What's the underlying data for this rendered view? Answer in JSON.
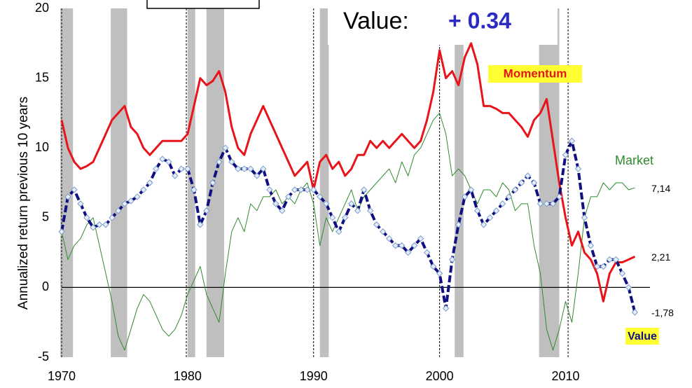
{
  "chart_data": {
    "type": "line",
    "y_label": "Annualized return previous 10 years",
    "xlim": [
      1970,
      2016.7
    ],
    "ylim": [
      -5,
      20
    ],
    "xticks": [
      1970,
      1980,
      1990,
      2000,
      2010
    ],
    "yticks": [
      -5,
      0,
      5,
      10,
      15,
      20
    ],
    "recessions": [
      [
        1969.9,
        1970.9
      ],
      [
        1973.9,
        1975.2
      ],
      [
        1980,
        1980.6
      ],
      [
        1981.5,
        1982.9
      ],
      [
        1990.5,
        1991.2
      ],
      [
        2001.2,
        2001.9
      ],
      [
        2007.9,
        2009.5
      ]
    ],
    "vlines": [
      1970,
      1979.9,
      1990,
      2000,
      2010.2
    ],
    "annotations": [
      {
        "text": "Value:"
      },
      {
        "text": "+ 0.34"
      }
    ],
    "x": [
      1970,
      1970.5,
      1971,
      1971.5,
      1972,
      1972.5,
      1973,
      1973.5,
      1974,
      1974.5,
      1975,
      1975.5,
      1976,
      1976.5,
      1977,
      1977.5,
      1978,
      1978.5,
      1979,
      1979.5,
      1980,
      1980.5,
      1981,
      1981.5,
      1982,
      1982.5,
      1983,
      1983.5,
      1984,
      1984.5,
      1985,
      1985.5,
      1986,
      1986.5,
      1987,
      1987.5,
      1988,
      1988.5,
      1989,
      1989.5,
      1990,
      1990.5,
      1991,
      1991.5,
      1992,
      1992.5,
      1993,
      1993.5,
      1994,
      1994.5,
      1995,
      1995.5,
      1996,
      1996.5,
      1997,
      1997.5,
      1998,
      1998.5,
      1999,
      1999.5,
      2000,
      2000.5,
      2001,
      2001.5,
      2002,
      2002.5,
      2003,
      2003.5,
      2004,
      2004.5,
      2005,
      2005.5,
      2006,
      2006.5,
      2007,
      2007.5,
      2008,
      2008.5,
      2009,
      2009.5,
      2010,
      2010.5,
      2011,
      2011.5,
      2012,
      2012.5,
      2013,
      2013.5,
      2014,
      2014.5,
      2015,
      2015.5
    ],
    "series": [
      {
        "name": "Market",
        "color": "#2e8b2e",
        "width": 1,
        "end_label": "7,14",
        "values": [
          4,
          2,
          3,
          3.5,
          4.5,
          5,
          3,
          1,
          -1,
          -3.5,
          -4.5,
          -3,
          -1.5,
          -0.5,
          -1,
          -2,
          -3,
          -3.5,
          -3,
          -2,
          -0.5,
          0.5,
          1.5,
          -0.5,
          -1.5,
          -2.5,
          1,
          4,
          5,
          4,
          6,
          5.5,
          6.5,
          6.5,
          7,
          6,
          6.5,
          6,
          7,
          7.5,
          6,
          3,
          5,
          4,
          5,
          6,
          7,
          5.5,
          6.5,
          7,
          7.5,
          8,
          8.5,
          7.5,
          9,
          8,
          9.5,
          10,
          11,
          12,
          12.5,
          11,
          8,
          8.5,
          8,
          7,
          6,
          7,
          7,
          6.5,
          7.5,
          7,
          5.5,
          6,
          6,
          3,
          1,
          -3,
          -4.5,
          -3,
          -1,
          -2.5,
          1,
          5,
          6.5,
          6.5,
          7.5,
          7,
          7.5,
          7.5,
          7,
          7.14
        ]
      },
      {
        "name": "Momentum",
        "color": "#e8141a",
        "width": 3,
        "end_label": "2,21",
        "values": [
          12,
          10,
          9,
          8.5,
          8.7,
          9,
          10,
          11,
          12,
          12.5,
          13,
          11.5,
          11,
          10,
          9.5,
          10,
          10.5,
          10.5,
          10.5,
          10.5,
          11,
          13,
          15,
          14.5,
          14.8,
          15.5,
          14,
          11.5,
          10,
          9.5,
          11,
          12,
          13,
          12,
          11,
          10,
          9,
          8,
          8.5,
          9,
          7,
          9,
          9.5,
          8.5,
          9,
          8,
          8.5,
          9.5,
          9.5,
          10.5,
          10,
          10.5,
          10,
          10.5,
          11,
          10.5,
          10,
          10.5,
          12,
          14,
          17,
          15,
          15.5,
          14.5,
          16.5,
          17.5,
          16,
          13,
          13,
          12.8,
          12.5,
          12.5,
          12,
          11.5,
          10.8,
          12,
          12.5,
          13.5,
          10.5,
          7.5,
          5,
          3,
          4,
          2.5,
          2,
          1,
          -1,
          1,
          1.8,
          1.8,
          2,
          2.21
        ]
      },
      {
        "name": "Value",
        "color": "#101080",
        "width": 4,
        "end_label": "-1,78",
        "values": [
          4,
          6.5,
          7,
          6,
          5,
          4.3,
          4.5,
          4.5,
          5,
          5.5,
          6,
          6.2,
          6.5,
          7,
          7.5,
          8.5,
          9.2,
          9,
          8,
          8.5,
          8.5,
          7,
          4.5,
          5.5,
          7.5,
          9,
          10,
          9,
          8.5,
          8.5,
          8.5,
          8,
          8.5,
          7,
          6,
          5.5,
          6.5,
          7,
          7,
          7,
          7,
          6.5,
          6,
          5,
          4,
          5,
          6,
          5.5,
          7,
          5.5,
          4.5,
          4,
          3.5,
          3,
          3,
          2.5,
          3,
          3.5,
          2.5,
          1.5,
          1,
          -1.5,
          2,
          4.5,
          6.5,
          7,
          5.5,
          4.5,
          5,
          5.5,
          6,
          6.5,
          7,
          7.5,
          8,
          7.5,
          6,
          6,
          6,
          6.5,
          9.5,
          10.5,
          8.5,
          5,
          3,
          1.5,
          1.5,
          2,
          2,
          1,
          0,
          -1.78
        ]
      }
    ]
  }
}
